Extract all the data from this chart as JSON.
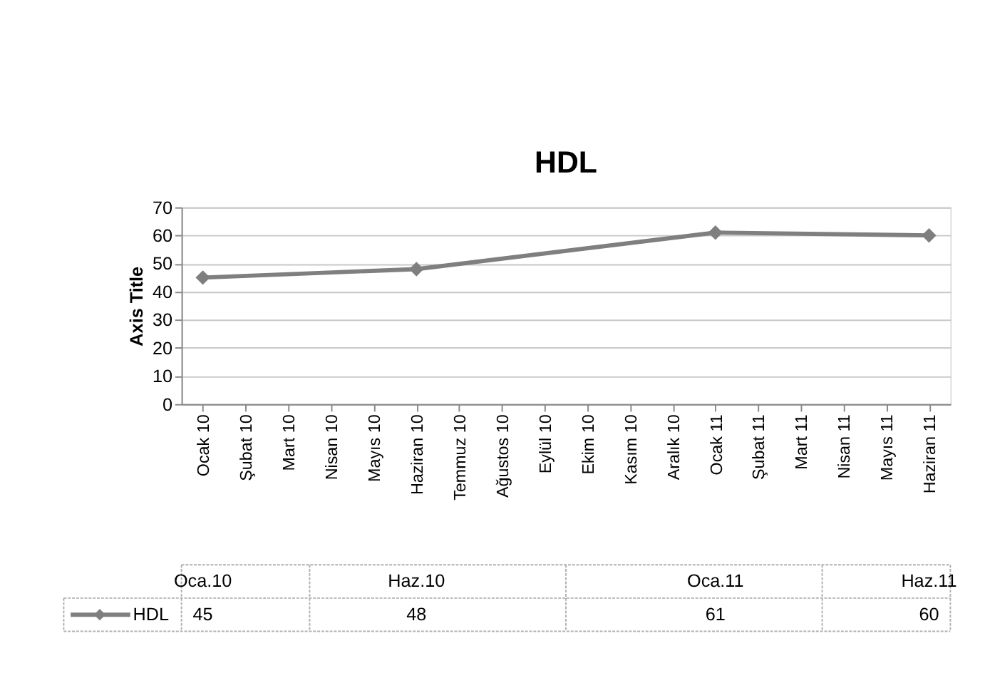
{
  "chart_data": {
    "type": "line",
    "title": "HDL",
    "ylabel": "Axis Title",
    "categories": [
      "Ocak 10",
      "Şubat 10",
      "Mart 10",
      "Nisan 10",
      "Mayıs 10",
      "Haziran 10",
      "Temmuz 10",
      "Ağustos 10",
      "Eylül 10",
      "Ekim 10",
      "Kasım 10",
      "Aralık 10",
      "Ocak 11",
      "Şubat 11",
      "Mart 11",
      "Nisan 11",
      "Mayıs 11",
      "Haziran 11"
    ],
    "series": [
      {
        "name": "HDL",
        "color": "#7f7f7f",
        "values": [
          45,
          null,
          null,
          null,
          null,
          48,
          null,
          null,
          null,
          null,
          null,
          null,
          61,
          null,
          null,
          null,
          null,
          60
        ]
      }
    ],
    "annotations": [
      "Oca.10",
      "Haz.10",
      "Oca.11",
      "Haz.11"
    ],
    "ylim": [
      0,
      70
    ],
    "yticks": [
      0,
      10,
      20,
      30,
      40,
      50,
      60,
      70
    ],
    "grid": "y",
    "legend": "bottom",
    "marker": "diamond",
    "line_style": "solid",
    "data_labels": true
  }
}
